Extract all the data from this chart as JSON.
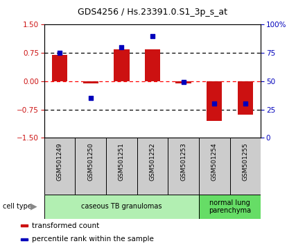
{
  "title": "GDS4256 / Hs.23391.0.S1_3p_s_at",
  "samples": [
    "GSM501249",
    "GSM501250",
    "GSM501251",
    "GSM501252",
    "GSM501253",
    "GSM501254",
    "GSM501255"
  ],
  "red_values": [
    0.7,
    -0.05,
    0.85,
    0.85,
    -0.05,
    -1.05,
    -0.88
  ],
  "blue_percentiles": [
    75,
    35,
    80,
    90,
    49,
    30,
    30
  ],
  "cell_types": [
    {
      "label": "caseous TB granulomas",
      "start": 0,
      "end": 5
    },
    {
      "label": "normal lung\nparenchyma",
      "start": 5,
      "end": 7
    }
  ],
  "cell_type_colors": [
    "#b2efb2",
    "#66dd66"
  ],
  "sample_box_color": "#cccccc",
  "ylim": [
    -1.5,
    1.5
  ],
  "yticks_left": [
    -1.5,
    -0.75,
    0,
    0.75,
    1.5
  ],
  "yticks_right": [
    0,
    25,
    50,
    75,
    100
  ],
  "bar_color": "#cc1111",
  "dot_color": "#0000bb",
  "bar_width": 0.5,
  "legend_items": [
    {
      "color": "#cc1111",
      "label": "transformed count"
    },
    {
      "color": "#0000bb",
      "label": "percentile rank within the sample"
    }
  ],
  "left_tick_color": "#cc1111",
  "right_tick_color": "#0000bb"
}
